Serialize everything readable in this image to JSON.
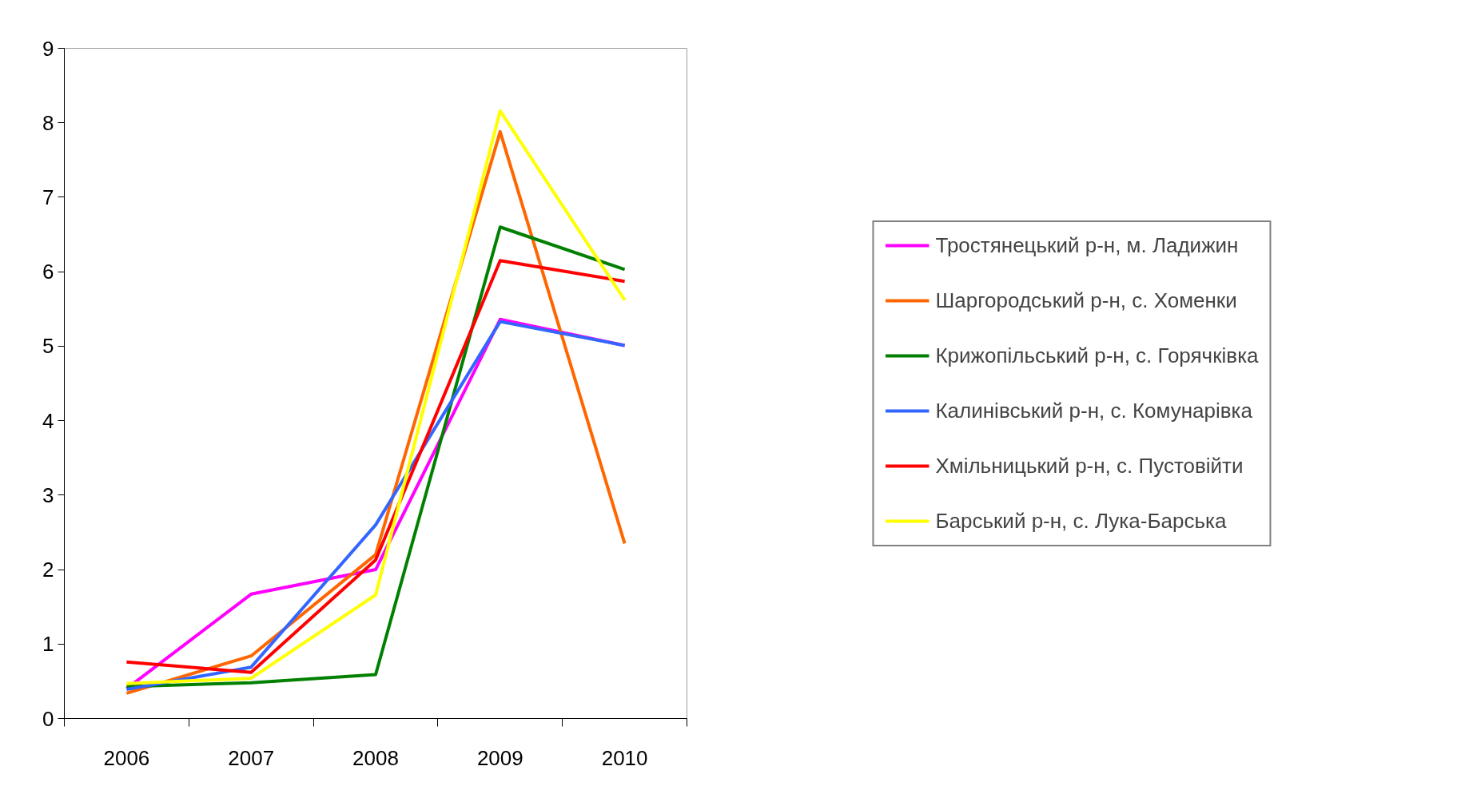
{
  "chart_data": {
    "type": "line",
    "categories": [
      "2006",
      "2007",
      "2008",
      "2009",
      "2010"
    ],
    "ylim": [
      0,
      9
    ],
    "yticks": [
      0,
      1,
      2,
      3,
      4,
      5,
      6,
      7,
      8,
      9
    ],
    "grid": false,
    "legend": "right",
    "marker": "none",
    "line_style": "solid",
    "series": [
      {
        "name": "Тростянецький р-н, м. Ладижин",
        "color": "#ff00ff",
        "values": [
          0.4,
          1.67,
          2.0,
          5.36,
          5.01
        ]
      },
      {
        "name": "Шаргородський р-н, с. Хоменки",
        "color": "#ff6600",
        "values": [
          0.34,
          0.84,
          2.2,
          7.88,
          2.35
        ]
      },
      {
        "name": "Крижопільський р-н, с. Горячківка",
        "color": "#008000",
        "values": [
          0.43,
          0.48,
          0.59,
          6.6,
          6.03
        ]
      },
      {
        "name": "Калинівський р-н, с. Комунарівка",
        "color": "#3366ff",
        "values": [
          0.39,
          0.69,
          2.6,
          5.33,
          5.01
        ]
      },
      {
        "name": "Хмільницький р-н, с. Пустовійти",
        "color": "#ff0000",
        "values": [
          0.76,
          0.62,
          2.13,
          6.15,
          5.87
        ]
      },
      {
        "name": "Барський р-н, с. Лука-Барська",
        "color": "#ffff00",
        "values": [
          0.47,
          0.54,
          1.66,
          8.16,
          5.62
        ]
      }
    ]
  }
}
